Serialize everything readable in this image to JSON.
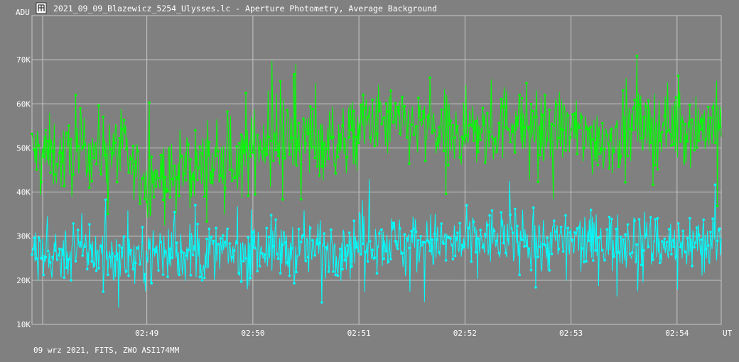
{
  "window": {
    "title": "2021_09_09_Blazewicz_5254_Ulysses.lc - Aperture Photometry, Average Background",
    "icon": "app-logo-icon"
  },
  "footer": {
    "text": "09 wrz 2021, FITS, ZWO ASI174MM"
  },
  "colors": {
    "background": "#808080",
    "grid": "#c8c8c8",
    "series_1": "#00ff00",
    "series_2": "#00ffff"
  },
  "chart_data": {
    "type": "line",
    "ylabel": "ADU",
    "xlabel": "UT",
    "ylim": [
      10000,
      80000
    ],
    "xlim": [
      "02:47:55",
      "02:54:25"
    ],
    "y_ticks": [
      {
        "value": 10000,
        "label": "10K"
      },
      {
        "value": 20000,
        "label": "20K"
      },
      {
        "value": 30000,
        "label": "30K"
      },
      {
        "value": 40000,
        "label": "40K"
      },
      {
        "value": 50000,
        "label": "50K"
      },
      {
        "value": 60000,
        "label": "60K"
      },
      {
        "value": 70000,
        "label": "70K"
      }
    ],
    "x_ticks": [
      {
        "value": "02:49:00",
        "label": "02:49"
      },
      {
        "value": "02:50:00",
        "label": "02:50"
      },
      {
        "value": "02:51:00",
        "label": "02:51"
      },
      {
        "value": "02:52:00",
        "label": "02:52"
      },
      {
        "value": "02:53:00",
        "label": "02:53"
      },
      {
        "value": "02:54:00",
        "label": "02:54"
      }
    ],
    "grid": true,
    "series": [
      {
        "color": "#00ff00",
        "x": [
          "02:47:55",
          "02:48:05",
          "02:48:15",
          "02:48:25",
          "02:48:35",
          "02:48:45",
          "02:48:55",
          "02:49:05",
          "02:49:15",
          "02:49:25",
          "02:49:35",
          "02:49:45",
          "02:49:55",
          "02:50:05",
          "02:50:15",
          "02:50:25",
          "02:50:35",
          "02:50:45",
          "02:50:55",
          "02:51:05",
          "02:51:15",
          "02:51:25",
          "02:51:35",
          "02:51:45",
          "02:51:55",
          "02:52:05",
          "02:52:15",
          "02:52:25",
          "02:52:35",
          "02:52:45",
          "02:52:55",
          "02:53:05",
          "02:53:15",
          "02:53:25",
          "02:53:35",
          "02:53:45",
          "02:53:55",
          "02:54:05",
          "02:54:15",
          "02:54:25"
        ],
        "values": [
          49000,
          48500,
          47500,
          50000,
          49500,
          50500,
          43000,
          44000,
          42500,
          46000,
          45500,
          47000,
          47500,
          52000,
          51500,
          52000,
          52500,
          50500,
          52500,
          55500,
          56000,
          55000,
          54500,
          53500,
          52000,
          54500,
          53500,
          56500,
          55500,
          54000,
          54500,
          53000,
          52000,
          52500,
          55000,
          54500,
          55500,
          54500,
          55000,
          56000
        ]
      },
      {
        "color": "#00ffff",
        "x": [
          "02:47:55",
          "02:48:05",
          "02:48:15",
          "02:48:25",
          "02:48:35",
          "02:48:45",
          "02:48:55",
          "02:49:05",
          "02:49:15",
          "02:49:25",
          "02:49:35",
          "02:49:45",
          "02:49:55",
          "02:50:05",
          "02:50:15",
          "02:50:25",
          "02:50:35",
          "02:50:45",
          "02:50:55",
          "02:51:05",
          "02:51:15",
          "02:51:25",
          "02:51:35",
          "02:51:45",
          "02:51:55",
          "02:52:05",
          "02:52:15",
          "02:52:25",
          "02:52:35",
          "02:52:45",
          "02:52:55",
          "02:53:05",
          "02:53:15",
          "02:53:25",
          "02:53:35",
          "02:53:45",
          "02:53:55",
          "02:54:05",
          "02:54:15",
          "02:54:25"
        ],
        "values": [
          26000,
          25500,
          26500,
          27000,
          26000,
          25000,
          25500,
          26000,
          26500,
          26000,
          25500,
          26500,
          26000,
          27500,
          27000,
          26500,
          27500,
          28000,
          27500,
          29500,
          29000,
          28500,
          29000,
          28500,
          28000,
          29000,
          29500,
          30000,
          29500,
          28500,
          29000,
          28500,
          29000,
          28500,
          29500,
          29000,
          28000,
          28500,
          29000,
          29500
        ]
      }
    ]
  }
}
